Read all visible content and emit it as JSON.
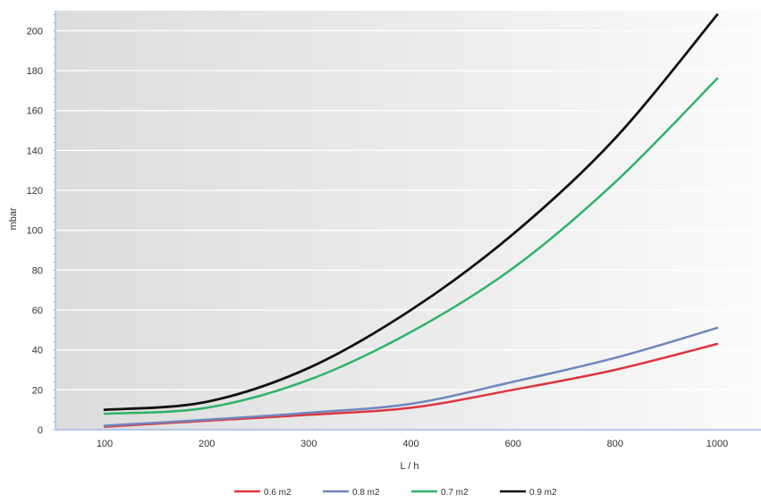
{
  "chart_data": {
    "type": "line",
    "title": "",
    "xlabel": "L / h",
    "ylabel": "mbar",
    "x_ticks": [
      "100",
      "200",
      "300",
      "400",
      "600",
      "800",
      "1000"
    ],
    "y_ticks": [
      0,
      20,
      40,
      60,
      80,
      100,
      120,
      140,
      160,
      180,
      200
    ],
    "ylim": [
      0,
      210
    ],
    "grid": true,
    "legend_position": "bottom",
    "series": [
      {
        "name": "0.6 m2",
        "color": "#e0343f",
        "values": [
          1.5,
          4.5,
          7.5,
          11,
          20,
          30,
          43
        ]
      },
      {
        "name": "0.8 m2",
        "color": "#6f86bd",
        "values": [
          2,
          5,
          8.5,
          13,
          24,
          36,
          51
        ]
      },
      {
        "name": "0.7 m2",
        "color": "#2db36a",
        "values": [
          8,
          11,
          25,
          49,
          81,
          124,
          176
        ]
      },
      {
        "name": "0.9 m2",
        "color": "#111111",
        "values": [
          10,
          14,
          31,
          60,
          98,
          146,
          208
        ]
      }
    ]
  }
}
